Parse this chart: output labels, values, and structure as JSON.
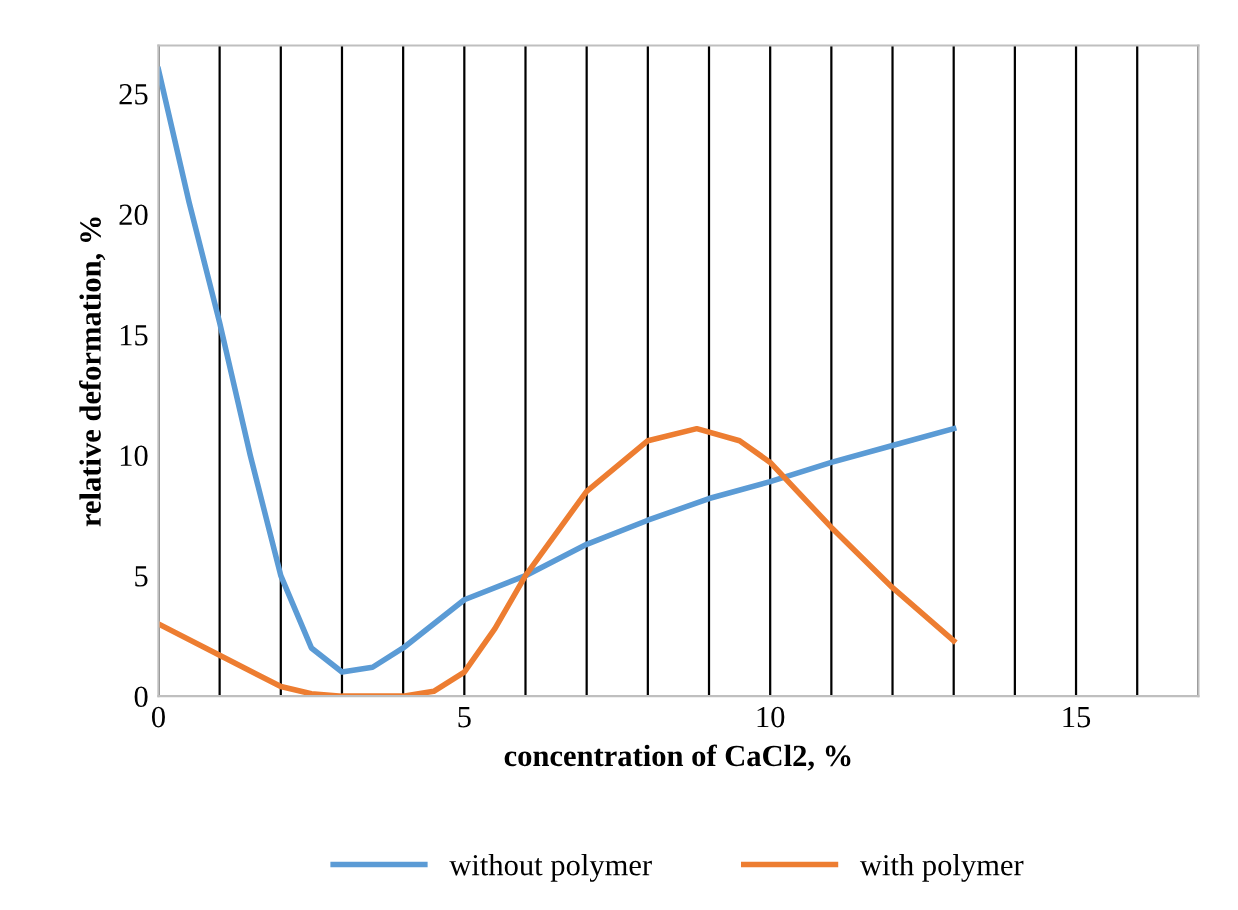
{
  "chart_data": {
    "type": "line",
    "xlabel": "concentration of CaCl2, %",
    "ylabel": "relative deformation, %",
    "xlim": [
      0,
      17
    ],
    "ylim": [
      0,
      27
    ],
    "xticks": [
      0,
      {
        "value": 1,
        "label": null
      },
      {
        "value": 2,
        "label": null
      },
      {
        "value": 3,
        "label": null
      },
      {
        "value": 4,
        "label": null
      },
      5,
      {
        "value": 6,
        "label": null
      },
      {
        "value": 7,
        "label": null
      },
      {
        "value": 8,
        "label": null
      },
      {
        "value": 9,
        "label": null
      },
      10,
      {
        "value": 11,
        "label": null
      },
      {
        "value": 12,
        "label": null
      },
      {
        "value": 13,
        "label": null
      },
      {
        "value": 14,
        "label": null
      },
      15,
      {
        "value": 16,
        "label": null
      },
      {
        "value": 17,
        "label": null
      }
    ],
    "yticks": [
      0,
      5,
      10,
      15,
      20,
      25
    ],
    "grid": "x",
    "legend": "bottom",
    "marker": "none",
    "line_style": "solid",
    "series": [
      {
        "name": "without polymer",
        "color": "#5b9bd5",
        "x": [
          0,
          0.5,
          1,
          1.5,
          2,
          2.5,
          3,
          3.5,
          4,
          5,
          6,
          7,
          8,
          9,
          10,
          11,
          12,
          13
        ],
        "values": [
          26,
          20.5,
          15.5,
          10,
          5,
          2,
          1,
          1.2,
          2,
          4,
          5,
          6.3,
          7.3,
          8.2,
          8.9,
          9.7,
          10.4,
          11.1
        ]
      },
      {
        "name": "with polymer",
        "color": "#ed7d31",
        "x": [
          0,
          1,
          2,
          2.5,
          3,
          3.5,
          4,
          4.5,
          5,
          5.5,
          6,
          7,
          8,
          8.8,
          9.5,
          10,
          11,
          12,
          13
        ],
        "values": [
          3,
          1.7,
          0.4,
          0.1,
          0,
          0,
          0,
          0.2,
          1,
          2.8,
          5,
          8.5,
          10.6,
          11.1,
          10.6,
          9.7,
          7,
          4.5,
          2.3
        ]
      }
    ]
  }
}
